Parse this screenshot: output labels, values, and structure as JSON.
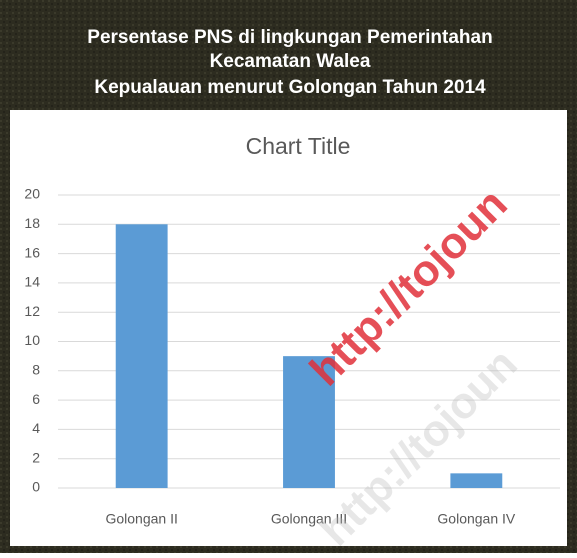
{
  "header": {
    "lines": [
      "Persentase PNS di lingkungan Pemerintahan",
      "Kecamatan Walea",
      "Kepualauan  menurut Golongan Tahun 2014"
    ]
  },
  "watermark": [
    "http://tojoun",
    "http://tojoun"
  ],
  "chart_data": {
    "type": "bar",
    "title": "Chart Title",
    "categories": [
      "Golongan II",
      "Golongan III",
      "Golongan IV"
    ],
    "values": [
      18,
      9,
      1
    ],
    "color": "#5b9bd5",
    "ylim": [
      0,
      20
    ],
    "yticks": [
      0,
      2,
      4,
      6,
      8,
      10,
      12,
      14,
      16,
      18,
      20
    ],
    "grid": true
  }
}
